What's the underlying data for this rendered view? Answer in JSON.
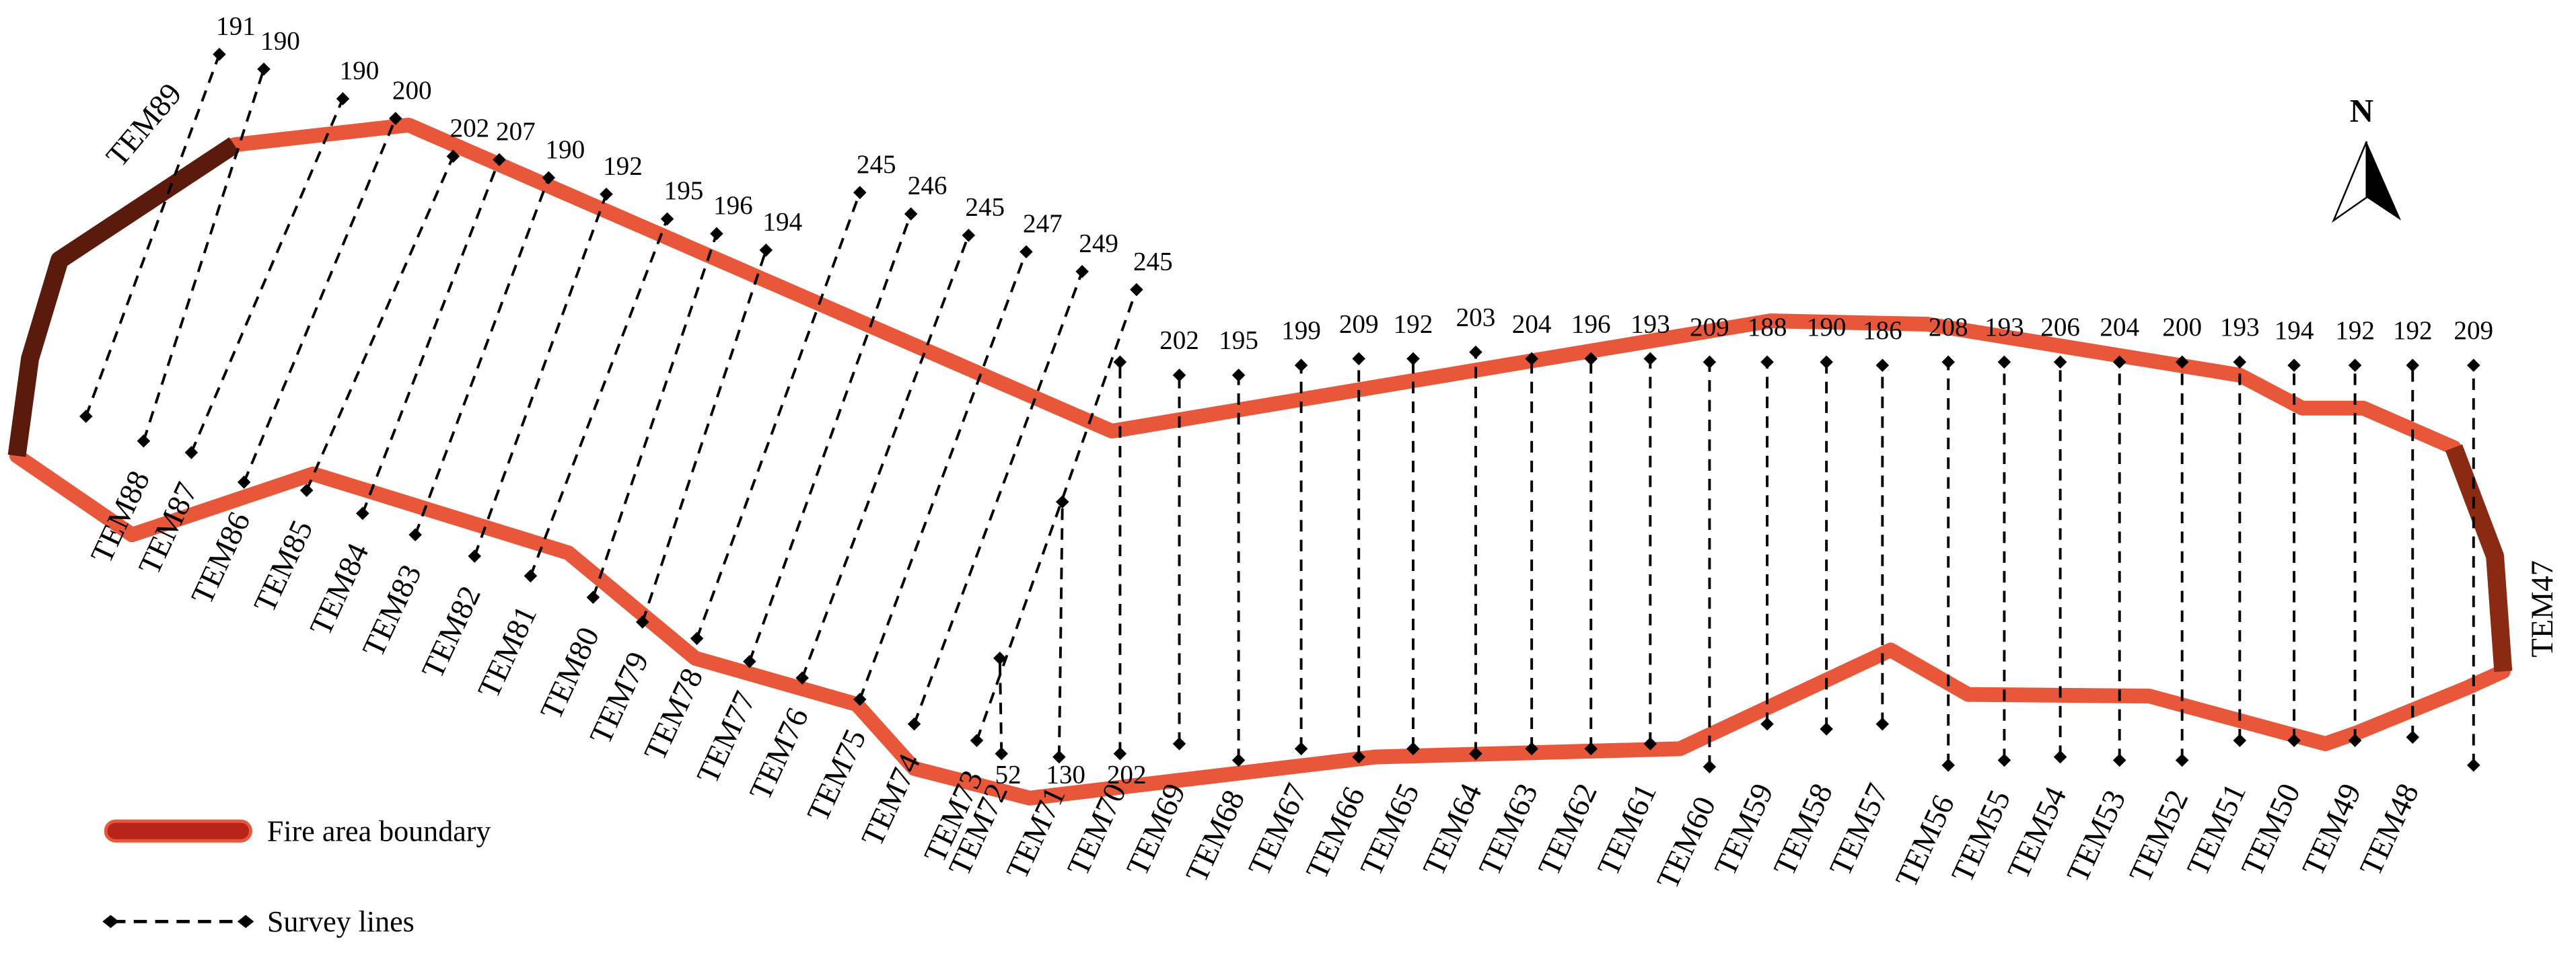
{
  "north": "N",
  "lines": [
    {
      "name": "TEM89",
      "length": 191
    },
    {
      "name": "TEM88",
      "length": 190
    },
    {
      "name": "TEM87",
      "length": 190
    },
    {
      "name": "TEM86",
      "length": 200
    },
    {
      "name": "TEM85",
      "length": 202
    },
    {
      "name": "TEM84",
      "length": 207
    },
    {
      "name": "TEM83",
      "length": 190
    },
    {
      "name": "TEM82",
      "length": 192
    },
    {
      "name": "TEM81",
      "length": 195
    },
    {
      "name": "TEM80",
      "length": 196
    },
    {
      "name": "TEM79",
      "length": 194
    },
    {
      "name": "TEM78",
      "length": 245
    },
    {
      "name": "TEM77",
      "length": 246
    },
    {
      "name": "TEM76",
      "length": 245
    },
    {
      "name": "TEM75",
      "length": 247
    },
    {
      "name": "TEM74",
      "length": 249
    },
    {
      "name": "TEM73",
      "length": 245
    },
    {
      "name": "TEM72",
      "length": 52
    },
    {
      "name": "TEM71",
      "length": 130
    },
    {
      "name": "TEM70",
      "length": 202
    },
    {
      "name": "TEM69",
      "length": 202
    },
    {
      "name": "TEM68",
      "length": 195
    },
    {
      "name": "TEM67",
      "length": 199
    },
    {
      "name": "TEM66",
      "length": 209
    },
    {
      "name": "TEM65",
      "length": 192
    },
    {
      "name": "TEM64",
      "length": 203
    },
    {
      "name": "TEM63",
      "length": 204
    },
    {
      "name": "TEM62",
      "length": 196
    },
    {
      "name": "TEM61",
      "length": 193
    },
    {
      "name": "TEM60",
      "length": 209
    },
    {
      "name": "TEM59",
      "length": 188
    },
    {
      "name": "TEM58",
      "length": 190
    },
    {
      "name": "TEM57",
      "length": 186
    },
    {
      "name": "TEM56",
      "length": 208
    },
    {
      "name": "TEM55",
      "length": 193
    },
    {
      "name": "TEM54",
      "length": 206
    },
    {
      "name": "TEM53",
      "length": 204
    },
    {
      "name": "TEM52",
      "length": 200
    },
    {
      "name": "TEM51",
      "length": 193
    },
    {
      "name": "TEM50",
      "length": 194
    },
    {
      "name": "TEM49",
      "length": 192
    },
    {
      "name": "TEM48",
      "length": 192
    },
    {
      "name": "TEM47",
      "length": 209
    }
  ],
  "legend": {
    "boundary": "Fire area boundary",
    "survey": "Survey lines"
  }
}
